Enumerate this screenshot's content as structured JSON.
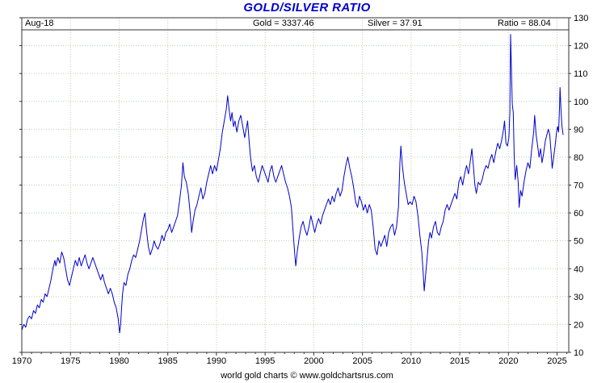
{
  "title": "GOLD/SILVER RATIO",
  "header": {
    "date_label": "Aug-18",
    "gold_label": "Gold = 3337.46",
    "silver_label": "Silver = 37.91",
    "ratio_label": "Ratio = 88.04"
  },
  "footer": "world gold charts © www.goldchartsrus.com",
  "colors": {
    "title": "#0000cc",
    "line": "#0000cc",
    "grid": "#b9cdb9",
    "frame": "#333333",
    "text": "#000000"
  },
  "chart_data": {
    "type": "line",
    "title": "GOLD/SILVER RATIO",
    "as_of": "Aug-18",
    "gold": 3337.46,
    "silver": 37.91,
    "ratio": 88.04,
    "xlabel": "",
    "ylabel": "",
    "xlim": [
      1970,
      2026.2
    ],
    "ylim": [
      10,
      130
    ],
    "x_ticks": [
      1970,
      1975,
      1980,
      1985,
      1990,
      1995,
      2000,
      2005,
      2010,
      2015,
      2020,
      2025
    ],
    "y_ticks": [
      10,
      20,
      30,
      40,
      50,
      60,
      70,
      80,
      90,
      100,
      110,
      120,
      130
    ],
    "grid": true,
    "legend": false,
    "line_color": "#0000cc",
    "grid_color": "#b9cdb9",
    "points": [
      [
        1970.0,
        18
      ],
      [
        1970.2,
        20
      ],
      [
        1970.4,
        19
      ],
      [
        1970.6,
        22
      ],
      [
        1970.8,
        23
      ],
      [
        1971.0,
        22
      ],
      [
        1971.2,
        25
      ],
      [
        1971.4,
        24
      ],
      [
        1971.6,
        27
      ],
      [
        1971.8,
        26
      ],
      [
        1972.0,
        29
      ],
      [
        1972.2,
        28
      ],
      [
        1972.4,
        31
      ],
      [
        1972.6,
        30
      ],
      [
        1972.8,
        33
      ],
      [
        1973.0,
        36
      ],
      [
        1973.2,
        40
      ],
      [
        1973.4,
        43
      ],
      [
        1973.5,
        41
      ],
      [
        1973.7,
        44
      ],
      [
        1973.9,
        42
      ],
      [
        1974.1,
        46
      ],
      [
        1974.3,
        44
      ],
      [
        1974.5,
        40
      ],
      [
        1974.7,
        36
      ],
      [
        1974.9,
        34
      ],
      [
        1975.1,
        37
      ],
      [
        1975.3,
        40
      ],
      [
        1975.5,
        43
      ],
      [
        1975.7,
        41
      ],
      [
        1975.9,
        44
      ],
      [
        1976.1,
        41
      ],
      [
        1976.3,
        43
      ],
      [
        1976.5,
        45
      ],
      [
        1976.7,
        42
      ],
      [
        1976.9,
        40
      ],
      [
        1977.1,
        42
      ],
      [
        1977.3,
        44
      ],
      [
        1977.5,
        42
      ],
      [
        1977.7,
        40
      ],
      [
        1977.9,
        38
      ],
      [
        1978.1,
        36
      ],
      [
        1978.3,
        38
      ],
      [
        1978.5,
        35
      ],
      [
        1978.7,
        33
      ],
      [
        1978.9,
        31
      ],
      [
        1979.1,
        33
      ],
      [
        1979.3,
        31
      ],
      [
        1979.5,
        28
      ],
      [
        1979.7,
        26
      ],
      [
        1979.9,
        22
      ],
      [
        1980.05,
        17
      ],
      [
        1980.15,
        20
      ],
      [
        1980.25,
        26
      ],
      [
        1980.35,
        31
      ],
      [
        1980.5,
        35
      ],
      [
        1980.7,
        34
      ],
      [
        1980.9,
        38
      ],
      [
        1981.1,
        40
      ],
      [
        1981.3,
        43
      ],
      [
        1981.5,
        45
      ],
      [
        1981.7,
        44
      ],
      [
        1981.9,
        47
      ],
      [
        1982.1,
        50
      ],
      [
        1982.3,
        54
      ],
      [
        1982.5,
        58
      ],
      [
        1982.65,
        60
      ],
      [
        1982.8,
        54
      ],
      [
        1983.0,
        48
      ],
      [
        1983.2,
        45
      ],
      [
        1983.4,
        47
      ],
      [
        1983.6,
        50
      ],
      [
        1983.8,
        48
      ],
      [
        1984.0,
        47
      ],
      [
        1984.2,
        49
      ],
      [
        1984.4,
        52
      ],
      [
        1984.6,
        50
      ],
      [
        1984.8,
        53
      ],
      [
        1985.0,
        54
      ],
      [
        1985.2,
        56
      ],
      [
        1985.4,
        53
      ],
      [
        1985.6,
        55
      ],
      [
        1985.8,
        57
      ],
      [
        1986.0,
        59
      ],
      [
        1986.2,
        64
      ],
      [
        1986.4,
        70
      ],
      [
        1986.55,
        78
      ],
      [
        1986.7,
        73
      ],
      [
        1986.9,
        71
      ],
      [
        1987.1,
        67
      ],
      [
        1987.3,
        60
      ],
      [
        1987.45,
        53
      ],
      [
        1987.6,
        57
      ],
      [
        1987.8,
        61
      ],
      [
        1988.0,
        63
      ],
      [
        1988.2,
        66
      ],
      [
        1988.4,
        69
      ],
      [
        1988.6,
        65
      ],
      [
        1988.8,
        67
      ],
      [
        1989.0,
        71
      ],
      [
        1989.2,
        74
      ],
      [
        1989.4,
        77
      ],
      [
        1989.6,
        74
      ],
      [
        1989.8,
        77
      ],
      [
        1990.0,
        75
      ],
      [
        1990.2,
        79
      ],
      [
        1990.4,
        83
      ],
      [
        1990.6,
        89
      ],
      [
        1990.8,
        93
      ],
      [
        1991.0,
        97
      ],
      [
        1991.15,
        102
      ],
      [
        1991.3,
        97
      ],
      [
        1991.45,
        93
      ],
      [
        1991.6,
        96
      ],
      [
        1991.75,
        91
      ],
      [
        1991.9,
        93
      ],
      [
        1992.1,
        89
      ],
      [
        1992.3,
        93
      ],
      [
        1992.5,
        95
      ],
      [
        1992.7,
        91
      ],
      [
        1992.9,
        87
      ],
      [
        1993.05,
        90
      ],
      [
        1993.2,
        93
      ],
      [
        1993.35,
        86
      ],
      [
        1993.5,
        80
      ],
      [
        1993.7,
        75
      ],
      [
        1993.9,
        77
      ],
      [
        1994.1,
        73
      ],
      [
        1994.3,
        71
      ],
      [
        1994.5,
        74
      ],
      [
        1994.7,
        77
      ],
      [
        1994.9,
        75
      ],
      [
        1995.1,
        73
      ],
      [
        1995.3,
        71
      ],
      [
        1995.5,
        75
      ],
      [
        1995.7,
        77
      ],
      [
        1995.9,
        73
      ],
      [
        1996.1,
        71
      ],
      [
        1996.3,
        73
      ],
      [
        1996.5,
        75
      ],
      [
        1996.7,
        77
      ],
      [
        1996.9,
        74
      ],
      [
        1997.1,
        71
      ],
      [
        1997.3,
        69
      ],
      [
        1997.5,
        66
      ],
      [
        1997.7,
        62
      ],
      [
        1997.9,
        52
      ],
      [
        1998.05,
        45
      ],
      [
        1998.15,
        41
      ],
      [
        1998.3,
        46
      ],
      [
        1998.5,
        51
      ],
      [
        1998.7,
        55
      ],
      [
        1998.9,
        57
      ],
      [
        1999.1,
        54
      ],
      [
        1999.3,
        52
      ],
      [
        1999.5,
        55
      ],
      [
        1999.7,
        59
      ],
      [
        1999.9,
        56
      ],
      [
        2000.1,
        53
      ],
      [
        2000.3,
        56
      ],
      [
        2000.5,
        58
      ],
      [
        2000.7,
        56
      ],
      [
        2000.9,
        59
      ],
      [
        2001.1,
        61
      ],
      [
        2001.3,
        63
      ],
      [
        2001.5,
        65
      ],
      [
        2001.7,
        63
      ],
      [
        2001.9,
        66
      ],
      [
        2002.1,
        64
      ],
      [
        2002.3,
        67
      ],
      [
        2002.5,
        69
      ],
      [
        2002.7,
        66
      ],
      [
        2002.9,
        68
      ],
      [
        2003.1,
        73
      ],
      [
        2003.3,
        77
      ],
      [
        2003.5,
        80
      ],
      [
        2003.7,
        76
      ],
      [
        2003.9,
        73
      ],
      [
        2004.1,
        69
      ],
      [
        2004.3,
        64
      ],
      [
        2004.5,
        62
      ],
      [
        2004.7,
        66
      ],
      [
        2004.9,
        64
      ],
      [
        2005.1,
        61
      ],
      [
        2005.3,
        63
      ],
      [
        2005.5,
        60
      ],
      [
        2005.7,
        63
      ],
      [
        2005.9,
        61
      ],
      [
        2006.1,
        55
      ],
      [
        2006.3,
        47
      ],
      [
        2006.5,
        45
      ],
      [
        2006.7,
        50
      ],
      [
        2006.9,
        48
      ],
      [
        2007.1,
        50
      ],
      [
        2007.3,
        52
      ],
      [
        2007.5,
        48
      ],
      [
        2007.7,
        53
      ],
      [
        2007.9,
        55
      ],
      [
        2008.1,
        56
      ],
      [
        2008.3,
        52
      ],
      [
        2008.5,
        55
      ],
      [
        2008.7,
        62
      ],
      [
        2008.85,
        78
      ],
      [
        2008.95,
        84
      ],
      [
        2009.1,
        77
      ],
      [
        2009.3,
        71
      ],
      [
        2009.5,
        67
      ],
      [
        2009.7,
        63
      ],
      [
        2009.9,
        64
      ],
      [
        2010.1,
        63
      ],
      [
        2010.3,
        66
      ],
      [
        2010.5,
        64
      ],
      [
        2010.7,
        59
      ],
      [
        2010.9,
        52
      ],
      [
        2011.1,
        46
      ],
      [
        2011.25,
        38
      ],
      [
        2011.35,
        32
      ],
      [
        2011.5,
        38
      ],
      [
        2011.65,
        44
      ],
      [
        2011.8,
        50
      ],
      [
        2011.95,
        53
      ],
      [
        2012.1,
        51
      ],
      [
        2012.3,
        55
      ],
      [
        2012.5,
        57
      ],
      [
        2012.7,
        53
      ],
      [
        2012.9,
        52
      ],
      [
        2013.1,
        55
      ],
      [
        2013.3,
        57
      ],
      [
        2013.5,
        61
      ],
      [
        2013.7,
        63
      ],
      [
        2013.9,
        61
      ],
      [
        2014.1,
        63
      ],
      [
        2014.3,
        65
      ],
      [
        2014.5,
        67
      ],
      [
        2014.7,
        65
      ],
      [
        2014.9,
        71
      ],
      [
        2015.1,
        73
      ],
      [
        2015.3,
        70
      ],
      [
        2015.5,
        74
      ],
      [
        2015.7,
        77
      ],
      [
        2015.9,
        74
      ],
      [
        2016.1,
        79
      ],
      [
        2016.25,
        83
      ],
      [
        2016.4,
        77
      ],
      [
        2016.55,
        70
      ],
      [
        2016.7,
        67
      ],
      [
        2016.9,
        71
      ],
      [
        2017.1,
        70
      ],
      [
        2017.3,
        72
      ],
      [
        2017.5,
        75
      ],
      [
        2017.7,
        77
      ],
      [
        2017.9,
        76
      ],
      [
        2018.1,
        79
      ],
      [
        2018.3,
        81
      ],
      [
        2018.5,
        78
      ],
      [
        2018.7,
        82
      ],
      [
        2018.9,
        85
      ],
      [
        2019.1,
        83
      ],
      [
        2019.3,
        86
      ],
      [
        2019.5,
        90
      ],
      [
        2019.6,
        93
      ],
      [
        2019.75,
        85
      ],
      [
        2019.9,
        84
      ],
      [
        2020.05,
        87
      ],
      [
        2020.15,
        96
      ],
      [
        2020.22,
        124
      ],
      [
        2020.3,
        113
      ],
      [
        2020.4,
        99
      ],
      [
        2020.5,
        96
      ],
      [
        2020.6,
        80
      ],
      [
        2020.7,
        72
      ],
      [
        2020.85,
        77
      ],
      [
        2021.0,
        71
      ],
      [
        2021.1,
        62
      ],
      [
        2021.25,
        68
      ],
      [
        2021.4,
        66
      ],
      [
        2021.6,
        71
      ],
      [
        2021.8,
        75
      ],
      [
        2022.0,
        78
      ],
      [
        2022.2,
        76
      ],
      [
        2022.4,
        83
      ],
      [
        2022.6,
        89
      ],
      [
        2022.7,
        95
      ],
      [
        2022.85,
        88
      ],
      [
        2023.0,
        84
      ],
      [
        2023.15,
        80
      ],
      [
        2023.3,
        83
      ],
      [
        2023.45,
        78
      ],
      [
        2023.6,
        81
      ],
      [
        2023.8,
        86
      ],
      [
        2023.95,
        88
      ],
      [
        2024.1,
        90
      ],
      [
        2024.25,
        88
      ],
      [
        2024.4,
        81
      ],
      [
        2024.5,
        76
      ],
      [
        2024.65,
        80
      ],
      [
        2024.8,
        84
      ],
      [
        2024.95,
        89
      ],
      [
        2025.05,
        91
      ],
      [
        2025.15,
        89
      ],
      [
        2025.25,
        98
      ],
      [
        2025.3,
        105
      ],
      [
        2025.4,
        97
      ],
      [
        2025.5,
        91
      ],
      [
        2025.63,
        88
      ]
    ]
  }
}
